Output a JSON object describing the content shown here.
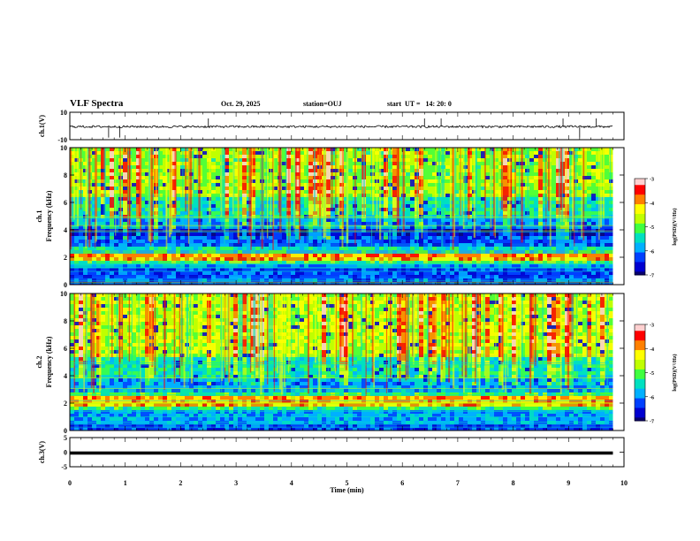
{
  "header": {
    "title": "VLF Spectra",
    "date": "Oct. 29, 2025",
    "station": "station=OUJ",
    "start": "start  UT =   14: 20: 0"
  },
  "colors": {
    "colormap": [
      "#08006e",
      "#0000d0",
      "#0040ff",
      "#00b0ff",
      "#00e0c0",
      "#40ff40",
      "#c0ff00",
      "#ffff00",
      "#ff8000",
      "#ff0000",
      "#ffd0d0"
    ],
    "trace": "#000000"
  },
  "chart_data": [
    {
      "type": "line",
      "name": "channel-1-waveform",
      "ylabel": "ch.1(V)",
      "ylim": [
        -10,
        10
      ],
      "yticks": [
        "10",
        "-10"
      ],
      "xlim": [
        0,
        10
      ],
      "baseline": -0.5,
      "spikes_t_min": [
        0.7,
        0.9,
        2.5,
        6.4,
        6.7,
        8.9,
        9.2,
        9.5
      ]
    },
    {
      "type": "heatmap",
      "name": "channel-1-spectrogram",
      "ylabel": "ch.1\nFrequency (kHz)",
      "ylim": [
        0,
        10
      ],
      "yticks": [
        "0",
        "2",
        "4",
        "6",
        "8",
        "10"
      ],
      "xlim": [
        0,
        10
      ],
      "bands_khz": [
        {
          "f0": 0.0,
          "f1": 0.4,
          "level": 1.2
        },
        {
          "f0": 0.4,
          "f1": 0.6,
          "level": 2.5
        },
        {
          "f0": 0.6,
          "f1": 1.4,
          "level": 2.0
        },
        {
          "f0": 1.4,
          "f1": 1.7,
          "level": 3.2
        },
        {
          "f0": 1.7,
          "f1": 2.0,
          "level": 5.0
        },
        {
          "f0": 2.0,
          "f1": 2.5,
          "level": 7.8
        },
        {
          "f0": 2.5,
          "f1": 3.0,
          "level": 4.0
        },
        {
          "f0": 3.0,
          "f1": 3.8,
          "level": 2.2
        },
        {
          "f0": 3.8,
          "f1": 4.2,
          "level": 1.0
        },
        {
          "f0": 4.2,
          "f1": 5.0,
          "level": 2.8
        },
        {
          "f0": 5.0,
          "f1": 6.5,
          "level": 4.2
        },
        {
          "f0": 6.5,
          "f1": 10.0,
          "level": 5.6
        }
      ],
      "colorbar": {
        "label": "log(PSD)(V²/Hz)",
        "ticks": [
          "-3",
          "-4",
          "-5",
          "-6",
          "-7"
        ],
        "range": [
          -7,
          -3
        ]
      }
    },
    {
      "type": "heatmap",
      "name": "channel-2-spectrogram",
      "ylabel": "ch.2\nFrequency (kHz)",
      "ylim": [
        0,
        10
      ],
      "yticks": [
        "0",
        "2",
        "4",
        "6",
        "8",
        "10"
      ],
      "xlim": [
        0,
        10
      ],
      "bands_khz": [
        {
          "f0": 0.0,
          "f1": 0.5,
          "level": 2.0
        },
        {
          "f0": 0.5,
          "f1": 1.5,
          "level": 3.0
        },
        {
          "f0": 1.5,
          "f1": 2.0,
          "level": 4.6
        },
        {
          "f0": 2.0,
          "f1": 2.6,
          "level": 7.6
        },
        {
          "f0": 2.6,
          "f1": 3.0,
          "level": 4.6
        },
        {
          "f0": 3.0,
          "f1": 4.0,
          "level": 3.0
        },
        {
          "f0": 4.0,
          "f1": 5.5,
          "level": 4.2
        },
        {
          "f0": 5.5,
          "f1": 10.0,
          "level": 6.0
        }
      ],
      "colorbar": {
        "label": "log(PSD)(V²/Hz)",
        "ticks": [
          "-3",
          "-4",
          "-5",
          "-6",
          "-7"
        ],
        "range": [
          -7,
          -3
        ]
      }
    },
    {
      "type": "line",
      "name": "channel-3-waveform",
      "ylabel": "ch.3(V)",
      "ylim": [
        -5,
        5
      ],
      "yticks": [
        "5",
        "0",
        "-5"
      ],
      "xlim": [
        0,
        10
      ],
      "baseline": -0.3
    }
  ],
  "xaxis": {
    "label": "Time (min)",
    "ticks": [
      "0",
      "1",
      "2",
      "3",
      "4",
      "5",
      "6",
      "7",
      "8",
      "9",
      "10"
    ]
  }
}
